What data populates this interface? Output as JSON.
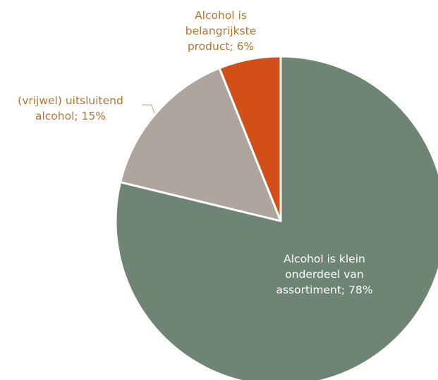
{
  "chart_data": {
    "type": "pie",
    "title": "",
    "slices": [
      {
        "label_lines": [
          "Alcohol is klein",
          "onderdeel van",
          "assortiment; 78%"
        ],
        "value": 78,
        "color": "#6E8575",
        "label_color": "#FFFFFF"
      },
      {
        "label_lines": [
          "(vrijwel) uitsluitend",
          "alcohol; 15%"
        ],
        "value": 15,
        "color": "#ADA59E",
        "label_color": "#B5742A"
      },
      {
        "label_lines": [
          "Alcohol is",
          "belangrijkste",
          "product; 6%"
        ],
        "value": 6,
        "color": "#D34F18",
        "label_color": "#B5742A"
      }
    ]
  }
}
